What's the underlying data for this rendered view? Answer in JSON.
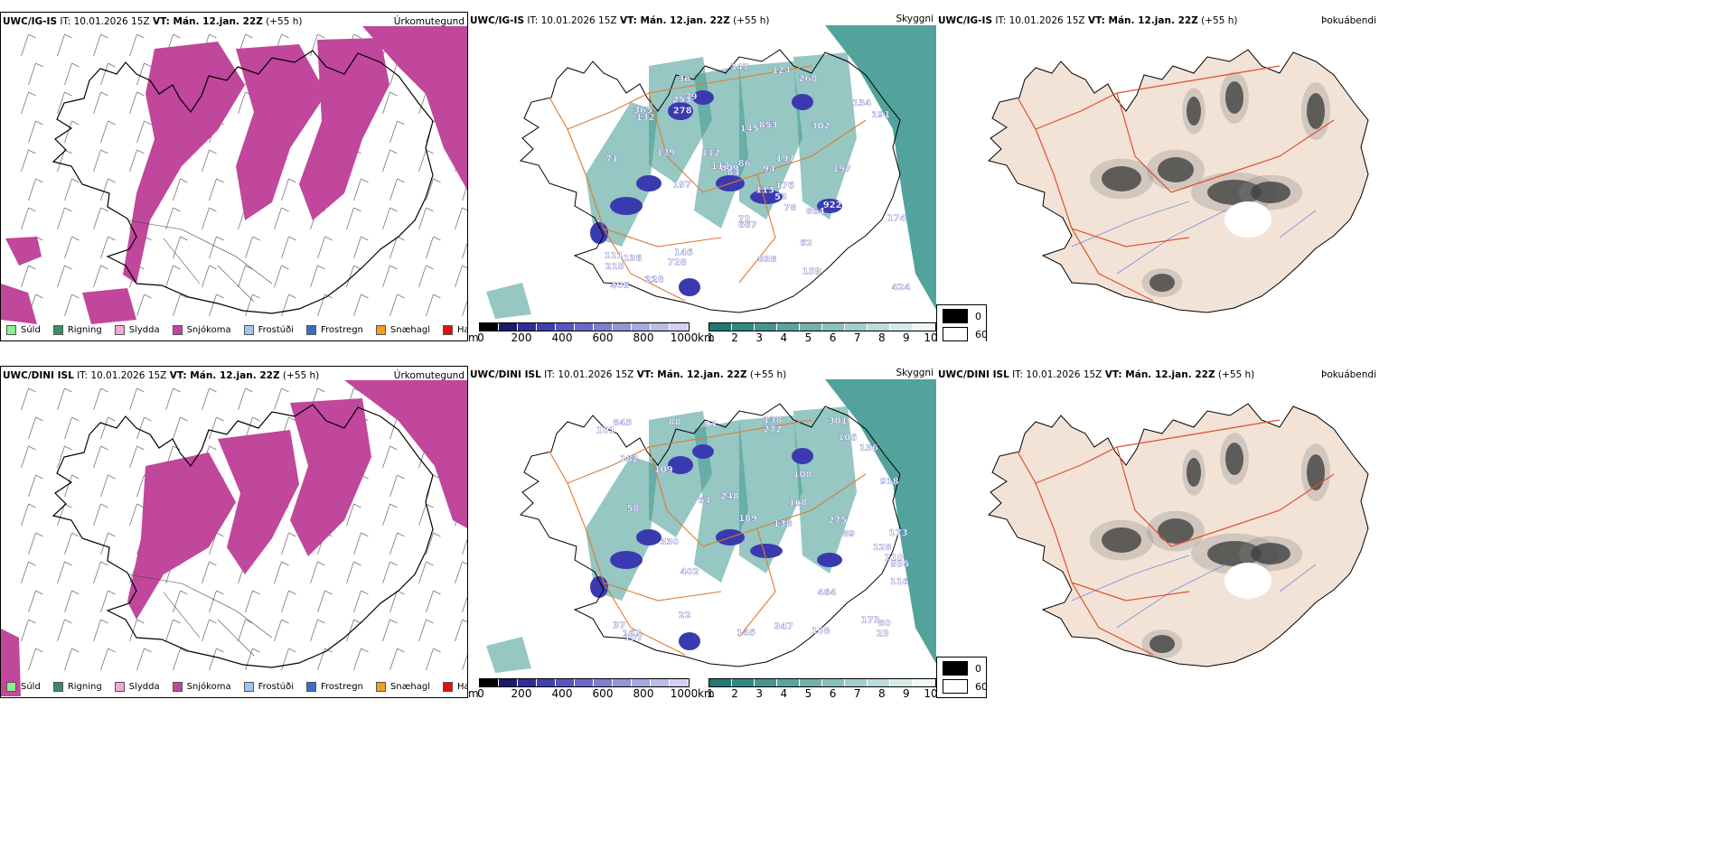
{
  "rows": [
    {
      "model": "UWC/IG-IS",
      "it": "IT: 10.01.2026 15Z",
      "vt": "VT: Mán. 12.jan. 22Z",
      "lead": "(+55 h)",
      "precip_labels": [
        "838",
        "728",
        "268",
        "864",
        "159",
        "176",
        "124",
        "128",
        "113",
        "347",
        "424",
        "53",
        "112",
        "111",
        "145",
        "79",
        "62",
        "21",
        "253",
        "667",
        "94",
        "365",
        "406",
        "278",
        "146",
        "132",
        "302",
        "853",
        "197",
        "809",
        "86",
        "174",
        "134",
        "139",
        "922",
        "84",
        "72",
        "112",
        "136",
        "215",
        "78",
        "197",
        "191",
        "36",
        "71",
        "197"
      ]
    },
    {
      "model": "UWC/DINI ISL",
      "it": "IT: 10.01.2026 15Z",
      "vt": "VT: Mán. 12.jan. 22Z",
      "lead": "(+55 h)",
      "precip_labels": [
        "248",
        "168",
        "189",
        "347",
        "106",
        "464",
        "167",
        "173",
        "80",
        "136",
        "918",
        "109",
        "94",
        "138",
        "116",
        "275",
        "173",
        "272",
        "101",
        "330",
        "935",
        "402",
        "128",
        "64",
        "108",
        "146",
        "89",
        "845",
        "301",
        "108",
        "37",
        "210",
        "88",
        "138",
        "58",
        "107",
        "22",
        "182",
        "23"
      ]
    }
  ],
  "panels": {
    "type_title": "Úrkomutegund",
    "cloud_title": "Skyggni",
    "fog_title": "Þokuábendi"
  },
  "precip_type_legend": [
    {
      "label": "Súld",
      "color": "#90ee90"
    },
    {
      "label": "Rigning",
      "color": "#3c8c64"
    },
    {
      "label": "Slydda",
      "color": "#f4a6d4"
    },
    {
      "label": "Snjókoma",
      "color": "#c0479b"
    },
    {
      "label": "Frostúði",
      "color": "#9fc5f0"
    },
    {
      "label": "Frostregn",
      "color": "#3a6fc0"
    },
    {
      "label": "Snæhagl",
      "color": "#f0a020"
    },
    {
      "label": "Haglél",
      "color": "#e01010"
    }
  ],
  "height_bar": {
    "unit": "m",
    "ticks": [
      "0",
      "200",
      "400",
      "600",
      "800",
      "1000"
    ],
    "colors": [
      "#000000",
      "#1a1a6e",
      "#2e2e9a",
      "#3f3fb4",
      "#5656c0",
      "#6a6ac8",
      "#7e7ed0",
      "#9494d8",
      "#a8a8e0",
      "#bcbce8",
      "#d0d0f0"
    ]
  },
  "vis_bar": {
    "unit": "km",
    "ticks": [
      "1",
      "2",
      "3",
      "4",
      "5",
      "6",
      "7",
      "8",
      "9",
      "10"
    ],
    "colors": [
      "#1f7a73",
      "#2f8a83",
      "#449791",
      "#5aa49f",
      "#72b2ad",
      "#8ac0bb",
      "#a3cfcb",
      "#bcdcd9",
      "#d6ebe9",
      "#f0f8f7"
    ]
  },
  "fog_legend": [
    {
      "label": "0",
      "color": "#000000"
    },
    {
      "label": "60",
      "color": "#ffffff"
    }
  ],
  "colors": {
    "snow": "#c0479b",
    "cloud": "#3f9990",
    "precip": "#3a3ab0",
    "road": "#e07a30",
    "fog_land": "#f3e3d6",
    "fog_road": "#e05030",
    "fog_river": "#7090e0"
  }
}
